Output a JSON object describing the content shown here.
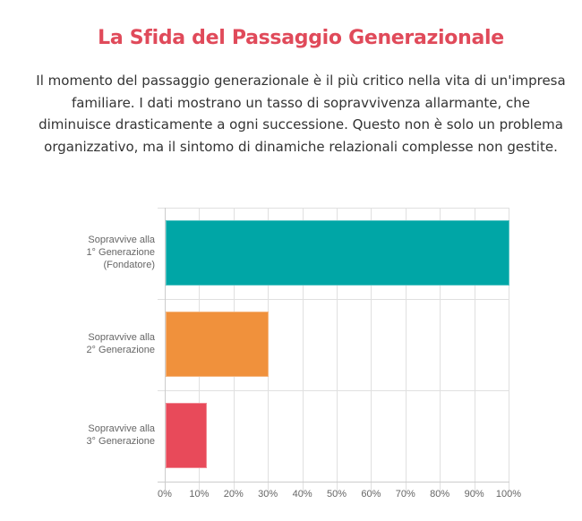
{
  "header": {
    "title": "La Sfida del Passaggio Generazionale",
    "description": "Il momento del passaggio generazionale è il più critico nella vita di un'impresa familiare. I dati mostrano un tasso di sopravvivenza allarmante, che diminuisce drasticamente a ogni successione. Questo non è solo un problema organizzativo, ma il sintomo di dinamiche relazionali complesse non gestite."
  },
  "colors": {
    "title": "#e04a5a",
    "bar_1": "#00a6a6",
    "bar_2": "#f0913c",
    "bar_3": "#e84a5a"
  },
  "chart_data": {
    "type": "bar",
    "orientation": "horizontal",
    "title": "",
    "xlabel": "",
    "ylabel": "",
    "categories": [
      "Sopravvive alla 1° Generazione (Fondatore)",
      "Sopravvive alla 2° Generazione",
      "Sopravvive alla 3° Generazione"
    ],
    "category_lines": [
      [
        "Sopravvive alla",
        "1° Generazione",
        "(Fondatore)"
      ],
      [
        "Sopravvive alla",
        "2° Generazione"
      ],
      [
        "Sopravvive alla",
        "3° Generazione"
      ]
    ],
    "values": [
      100,
      30,
      12
    ],
    "bar_colors": [
      "#00a6a6",
      "#f0913c",
      "#e84a5a"
    ],
    "xlim": [
      0,
      100
    ],
    "x_ticks": [
      "0%",
      "10%",
      "20%",
      "30%",
      "40%",
      "50%",
      "60%",
      "70%",
      "80%",
      "90%",
      "100%"
    ],
    "grid": true,
    "legend": "none"
  }
}
